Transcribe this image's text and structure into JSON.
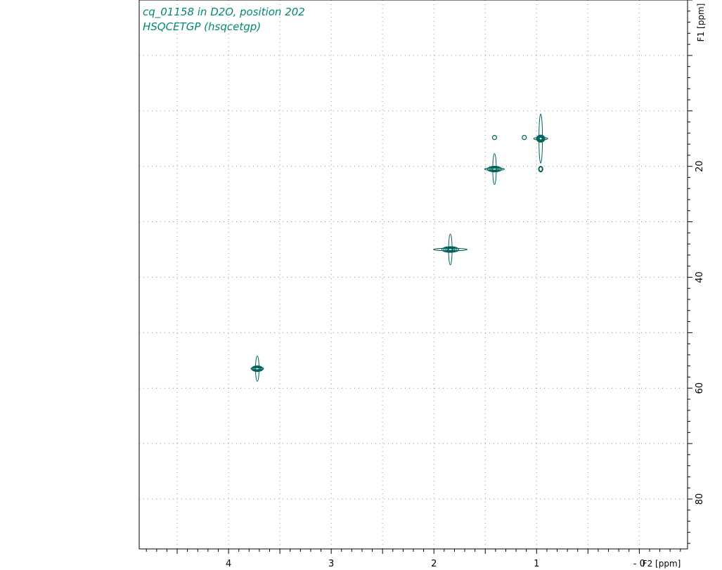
{
  "chart_data": {
    "type": "scatter",
    "title_lines": [
      "cq_01158 in D2O, position 202",
      "HSQCETGP (hsqcetgp)"
    ],
    "xlabel": "F2 [ppm]",
    "ylabel": "F1 [ppm]",
    "xlim": [
      4.87,
      -0.47
    ],
    "ylim": [
      -10,
      89
    ],
    "x_ticks": [
      4,
      3,
      2,
      1,
      0
    ],
    "x_tick_labels": [
      "4",
      "3",
      "2",
      "1",
      "- 0"
    ],
    "y_ticks": [
      20,
      40,
      60,
      80
    ],
    "y_tick_labels": [
      "20",
      "40",
      "60",
      "80"
    ],
    "grid": true,
    "grid_style": "dotted",
    "series": [
      {
        "peaks": [
          {
            "x": 3.72,
            "y": 56.5
          },
          {
            "x": 1.84,
            "y": 35.0
          },
          {
            "x": 1.41,
            "y": 20.5
          },
          {
            "x": 0.96,
            "y": 15.0
          },
          {
            "x": 0.96,
            "y": 20.5
          },
          {
            "x": 1.41,
            "y": 14.8
          },
          {
            "x": 1.12,
            "y": 14.8
          }
        ]
      }
    ],
    "colors": {
      "contour": "#00615a",
      "title": "#008a72",
      "grid": "#909090",
      "axis": "#000000"
    }
  }
}
